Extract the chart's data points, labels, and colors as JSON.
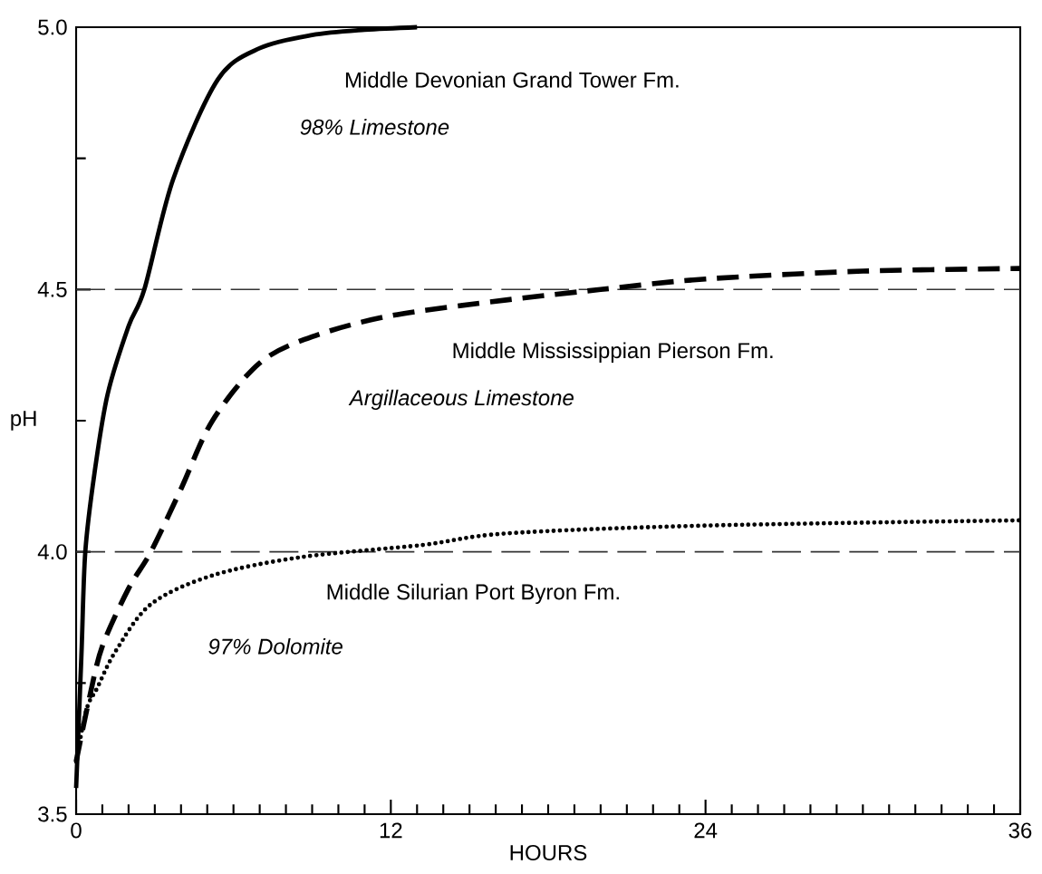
{
  "chart_data": {
    "type": "line",
    "xlabel": "HOURS",
    "ylabel": "pH",
    "xlim": [
      0,
      36
    ],
    "ylim": [
      3.5,
      5.0
    ],
    "xticks": [
      0,
      {
        "value": 1,
        "label": null
      },
      {
        "value": 2,
        "label": null
      },
      {
        "value": 3,
        "label": null
      },
      {
        "value": 4,
        "label": null
      },
      {
        "value": 5,
        "label": null
      },
      {
        "value": 6,
        "label": null
      },
      {
        "value": 7,
        "label": null
      },
      {
        "value": 8,
        "label": null
      },
      {
        "value": 9,
        "label": null
      },
      {
        "value": 10,
        "label": null
      },
      {
        "value": 11,
        "label": null
      },
      12,
      {
        "value": 13,
        "label": null
      },
      {
        "value": 14,
        "label": null
      },
      {
        "value": 15,
        "label": null
      },
      {
        "value": 16,
        "label": null
      },
      {
        "value": 17,
        "label": null
      },
      {
        "value": 18,
        "label": null
      },
      {
        "value": 19,
        "label": null
      },
      {
        "value": 20,
        "label": null
      },
      {
        "value": 21,
        "label": null
      },
      {
        "value": 22,
        "label": null
      },
      {
        "value": 23,
        "label": null
      },
      24,
      {
        "value": 25,
        "label": null
      },
      {
        "value": 26,
        "label": null
      },
      {
        "value": 27,
        "label": null
      },
      {
        "value": 28,
        "label": null
      },
      {
        "value": 29,
        "label": null
      },
      {
        "value": 30,
        "label": null
      },
      {
        "value": 31,
        "label": null
      },
      {
        "value": 32,
        "label": null
      },
      {
        "value": 33,
        "label": null
      },
      {
        "value": 34,
        "label": null
      },
      {
        "value": 35,
        "label": null
      },
      36
    ],
    "yticks": [
      3.5,
      {
        "value": 3.75,
        "label": null
      },
      {
        "value": 4.0,
        "label": "4.0"
      },
      {
        "value": 4.25,
        "label": null
      },
      4.5,
      {
        "value": 4.75,
        "label": null
      },
      {
        "value": 5.0,
        "label": "5.0"
      }
    ],
    "grid": false,
    "marker": "none",
    "series": [
      {
        "name": "Middle Devonian Grand Tower Fm.",
        "color": "#000000",
        "line_style": "solid",
        "x": [
          0,
          0.2,
          0.35,
          0.7,
          1.2,
          2,
          2.6,
          3.7,
          5.4,
          7,
          9,
          11,
          13
        ],
        "values": [
          3.55,
          3.8,
          4.0,
          4.15,
          4.3,
          4.43,
          4.5,
          4.71,
          4.9,
          4.96,
          4.985,
          4.995,
          5.0
        ]
      },
      {
        "name": "Middle Mississippian Pierson Fm.",
        "color": "#000000",
        "line_style": "dashed",
        "x": [
          0,
          0.5,
          1,
          2,
          2.85,
          4,
          5.2,
          7,
          9,
          12,
          16.4,
          20,
          24,
          30,
          36
        ],
        "values": [
          3.6,
          3.72,
          3.82,
          3.93,
          4.0,
          4.12,
          4.25,
          4.36,
          4.41,
          4.45,
          4.48,
          4.5,
          4.52,
          4.535,
          4.54
        ]
      },
      {
        "name": "Middle Silurian Port Byron Fm.",
        "color": "#000000",
        "line_style": "dotted",
        "x": [
          0,
          0.4,
          0.8,
          1.5,
          2.85,
          5.2,
          8.6,
          13.2,
          16.4,
          24,
          36
        ],
        "values": [
          3.6,
          3.7,
          3.74,
          3.81,
          3.9,
          3.955,
          3.99,
          4.013,
          4.035,
          4.05,
          4.06
        ]
      }
    ],
    "annotations": [
      "98% Limestone",
      "Argillaceous Limestone",
      "97% Dolomite"
    ],
    "ref_lines": [
      {
        "axis": "y",
        "value": 4.5,
        "color": "#333333",
        "line_style": "dashed"
      },
      {
        "axis": "y",
        "value": 4.0,
        "color": "#333333",
        "line_style": "dashed"
      }
    ]
  }
}
